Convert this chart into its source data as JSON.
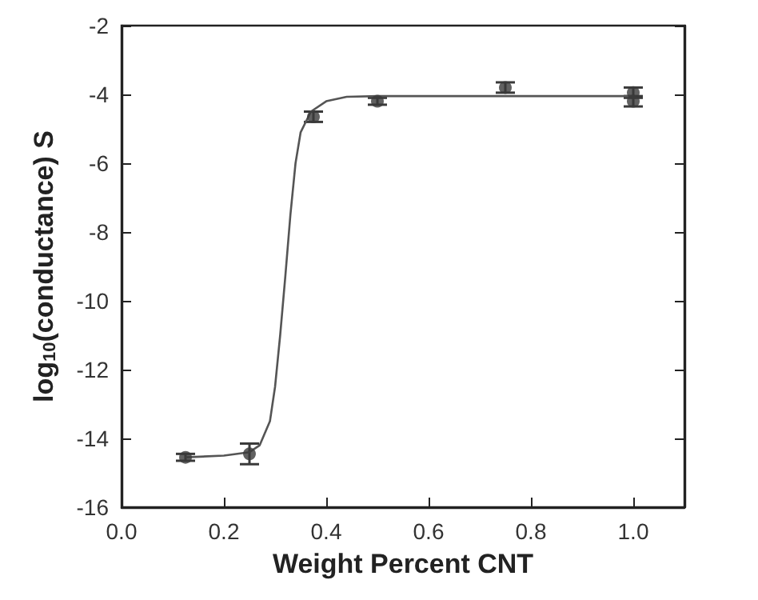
{
  "chart_data": {
    "type": "scatter",
    "xlabel": "Weight Percent CNT",
    "ylabel": "log$_{10}$(conductance) S",
    "xlim": [
      0,
      1.1
    ],
    "xticks": [
      {
        "value": 0,
        "label": "0.0"
      },
      0.2,
      0.4,
      0.6,
      0.8,
      {
        "value": 1,
        "label": "1.0"
      }
    ],
    "ylim": [
      -16,
      -2
    ],
    "yticks": [
      -16,
      -14,
      -12,
      -10,
      -8,
      -6,
      -4,
      -2
    ],
    "grid": false,
    "marker": "circle",
    "series": [
      {
        "color": "#3a3a3a",
        "x": [
          0.125,
          0.25,
          0.375,
          0.5,
          0.75,
          1.0,
          1.0
        ],
        "values": [
          -14.55,
          -14.45,
          -4.65,
          -4.2,
          -3.8,
          -3.95,
          -4.2
        ],
        "errors": [
          0.1,
          0.3,
          0.15,
          0.1,
          0.15,
          0.15,
          0.15
        ]
      },
      {
        "type": "line",
        "color": "#555555",
        "marker": "none",
        "x": [
          0.125,
          0.2,
          0.25,
          0.27,
          0.29,
          0.3,
          0.31,
          0.32,
          0.33,
          0.34,
          0.35,
          0.37,
          0.4,
          0.44,
          0.5,
          1.0
        ],
        "values": [
          -14.55,
          -14.5,
          -14.4,
          -14.2,
          -13.5,
          -12.5,
          -11,
          -9.3,
          -7.5,
          -6,
          -5.1,
          -4.5,
          -4.2,
          -4.07,
          -4.05,
          -4.05
        ]
      }
    ]
  }
}
